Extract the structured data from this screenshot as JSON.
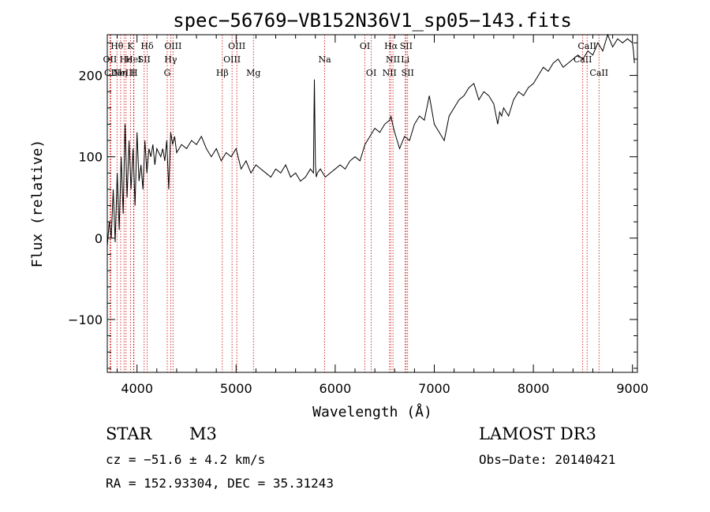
{
  "chart_data": {
    "type": "line",
    "title": "spec−56769−VB152N36V1_sp05−143.fits",
    "xlabel": "Wavelength (Å)",
    "ylabel": "Flux (relative)",
    "xlim": [
      3700,
      9050
    ],
    "ylim": [
      -165,
      250
    ],
    "xticks": [
      4000,
      5000,
      6000,
      7000,
      8000,
      9000
    ],
    "xtick_labels": [
      "4000",
      "5000",
      "6000",
      "7000",
      "8000",
      "9000"
    ],
    "yticks": [
      -100,
      0,
      100,
      200
    ],
    "ytick_labels": [
      "−100",
      "0",
      "100",
      "200"
    ],
    "series": [
      {
        "name": "flux",
        "x": [
          3700,
          3720,
          3740,
          3760,
          3780,
          3800,
          3820,
          3840,
          3860,
          3880,
          3900,
          3920,
          3940,
          3960,
          3980,
          4000,
          4020,
          4040,
          4060,
          4080,
          4100,
          4120,
          4140,
          4160,
          4180,
          4200,
          4220,
          4240,
          4260,
          4280,
          4300,
          4320,
          4340,
          4360,
          4380,
          4400,
          4450,
          4500,
          4550,
          4600,
          4650,
          4700,
          4750,
          4800,
          4850,
          4900,
          4950,
          5000,
          5050,
          5100,
          5150,
          5200,
          5250,
          5300,
          5350,
          5400,
          5450,
          5500,
          5550,
          5600,
          5650,
          5700,
          5750,
          5780,
          5790,
          5800,
          5810,
          5820,
          5850,
          5900,
          5950,
          6000,
          6050,
          6100,
          6150,
          6200,
          6250,
          6300,
          6350,
          6400,
          6450,
          6500,
          6550,
          6563,
          6580,
          6600,
          6650,
          6700,
          6750,
          6800,
          6850,
          6900,
          6950,
          7000,
          7050,
          7100,
          7150,
          7200,
          7250,
          7300,
          7350,
          7400,
          7450,
          7500,
          7550,
          7600,
          7640,
          7660,
          7680,
          7700,
          7750,
          7800,
          7850,
          7900,
          7950,
          8000,
          8050,
          8100,
          8150,
          8200,
          8250,
          8300,
          8350,
          8400,
          8450,
          8500,
          8550,
          8600,
          8650,
          8700,
          8750,
          8800,
          8850,
          8900,
          8950,
          9000,
          9010,
          9020
        ],
        "y": [
          -10,
          20,
          0,
          60,
          -5,
          80,
          10,
          100,
          30,
          140,
          50,
          120,
          60,
          110,
          40,
          130,
          70,
          90,
          60,
          120,
          80,
          110,
          100,
          115,
          90,
          110,
          105,
          100,
          110,
          95,
          120,
          60,
          130,
          115,
          125,
          105,
          115,
          110,
          120,
          115,
          125,
          110,
          100,
          110,
          95,
          105,
          100,
          110,
          85,
          95,
          80,
          90,
          85,
          80,
          75,
          85,
          80,
          90,
          75,
          80,
          70,
          75,
          85,
          80,
          195,
          90,
          75,
          80,
          85,
          75,
          80,
          85,
          90,
          85,
          95,
          100,
          95,
          115,
          125,
          135,
          130,
          140,
          145,
          150,
          140,
          130,
          110,
          125,
          120,
          140,
          150,
          145,
          175,
          140,
          130,
          120,
          150,
          160,
          170,
          175,
          185,
          190,
          170,
          180,
          175,
          165,
          140,
          155,
          150,
          160,
          150,
          170,
          180,
          175,
          185,
          190,
          200,
          210,
          205,
          215,
          220,
          210,
          215,
          220,
          225,
          220,
          230,
          225,
          240,
          230,
          250,
          235,
          245,
          240,
          245,
          240,
          230,
          215
        ]
      }
    ],
    "line_markers": [
      {
        "label": "OII",
        "wavelength": 3727,
        "row": 1
      },
      {
        "label": "CII",
        "wavelength": 3736,
        "row": 2
      },
      {
        "label": "Hθ",
        "wavelength": 3798,
        "row": 0
      },
      {
        "label": "Hη",
        "wavelength": 3835,
        "row": 2
      },
      {
        "label": "NeIII",
        "wavelength": 3869,
        "row": 2
      },
      {
        "label": "He",
        "wavelength": 3889,
        "row": 1
      },
      {
        "label": "K",
        "wavelength": 3934,
        "row": 0
      },
      {
        "label": "HeI",
        "wavelength": 3965,
        "row": 1
      },
      {
        "label": "H",
        "wavelength": 3969,
        "row": 2
      },
      {
        "label": "SII",
        "wavelength": 4072,
        "row": 1
      },
      {
        "label": "Hδ",
        "wavelength": 4102,
        "row": 0
      },
      {
        "label": "G",
        "wavelength": 4305,
        "row": 2
      },
      {
        "label": "Hγ",
        "wavelength": 4340,
        "row": 1
      },
      {
        "label": "OIII",
        "wavelength": 4363,
        "row": 0
      },
      {
        "label": "Hβ",
        "wavelength": 4861,
        "row": 2
      },
      {
        "label": "OIII",
        "wavelength": 4959,
        "row": 1
      },
      {
        "label": "OIII",
        "wavelength": 5007,
        "row": 0
      },
      {
        "label": "Mg",
        "wavelength": 5175,
        "row": 2
      },
      {
        "label": "Na",
        "wavelength": 5894,
        "row": 1
      },
      {
        "label": "OI",
        "wavelength": 6300,
        "row": 0
      },
      {
        "label": "OI",
        "wavelength": 6364,
        "row": 2
      },
      {
        "label": "NII",
        "wavelength": 6548,
        "row": 2
      },
      {
        "label": "Hα",
        "wavelength": 6563,
        "row": 0
      },
      {
        "label": "NII",
        "wavelength": 6583,
        "row": 1
      },
      {
        "label": "Li",
        "wavelength": 6707,
        "row": 1
      },
      {
        "label": "SII",
        "wavelength": 6716,
        "row": 0
      },
      {
        "label": "SII",
        "wavelength": 6731,
        "row": 2
      },
      {
        "label": "CaII",
        "wavelength": 8498,
        "row": 1
      },
      {
        "label": "CaII",
        "wavelength": 8542,
        "row": 0
      },
      {
        "label": "CaII",
        "wavelength": 8662,
        "row": 2
      }
    ]
  },
  "info": {
    "object_class": "STAR",
    "subclass": "M3",
    "survey": "LAMOST DR3",
    "cz": "cz = −51.6 ± 4.2 km/s",
    "obs_date": "Obs−Date: 20140421",
    "coords": "RA = 152.93304, DEC =  35.31243"
  },
  "colors": {
    "spectrum": "#000000",
    "marker_line": "#cc0000",
    "axis": "#000000"
  }
}
